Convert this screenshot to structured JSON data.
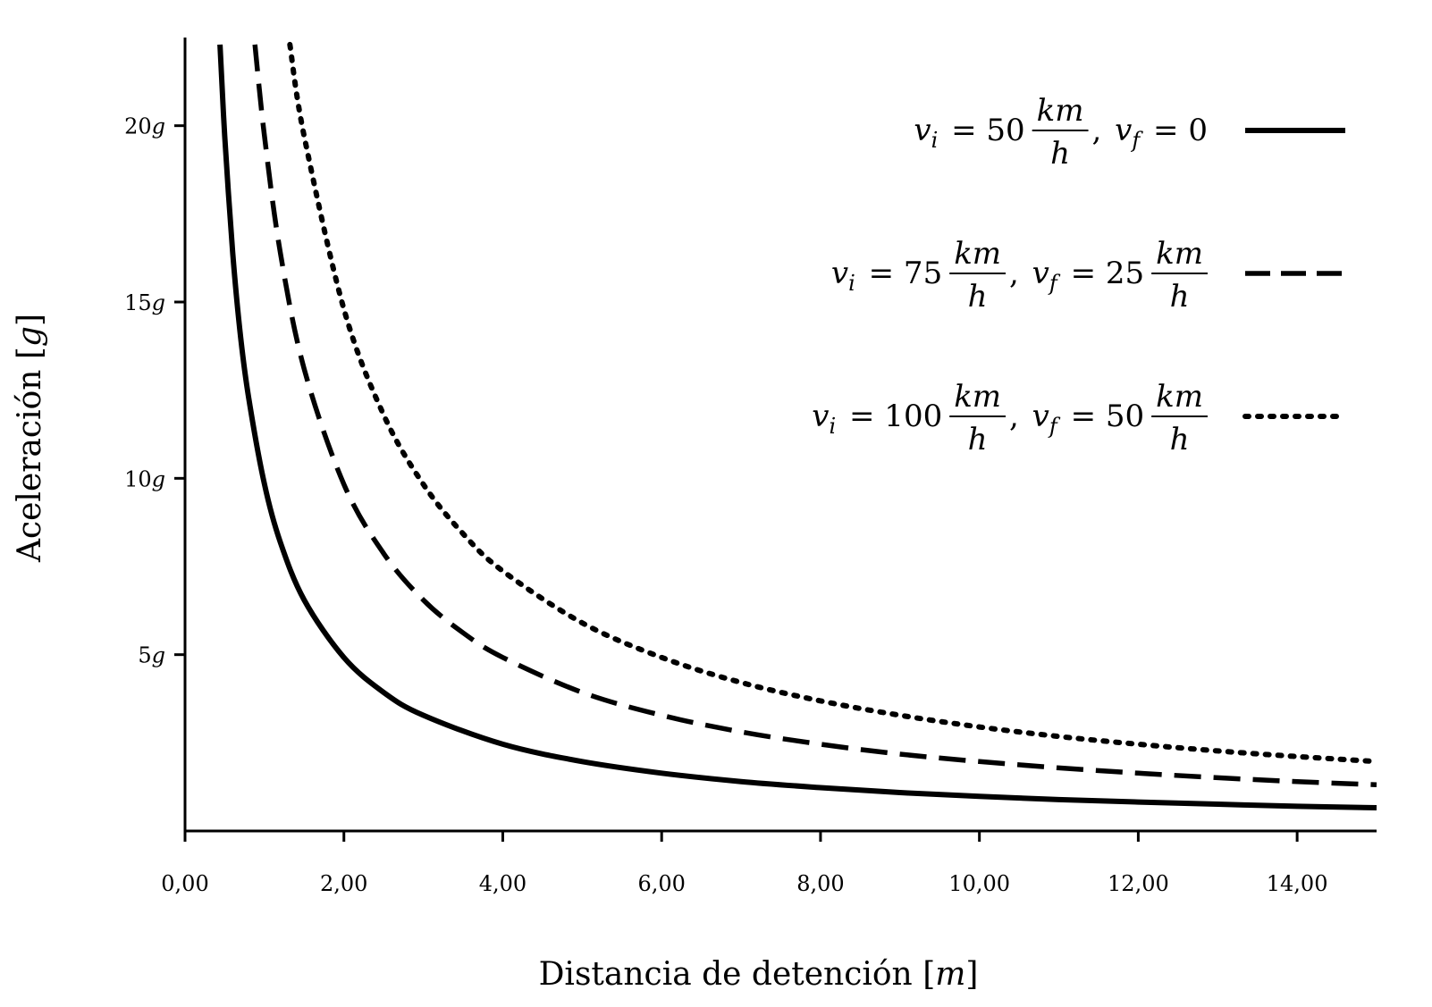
{
  "chart_data": {
    "type": "line",
    "xlabel": "Distancia de detención [m]",
    "ylabel": "Aceleración [g]",
    "xlim": [
      0,
      15
    ],
    "ylim": [
      0,
      22.5
    ],
    "grid": false,
    "legend_position": "top-right",
    "x_ticks": [
      {
        "value": 0,
        "label": "0,00"
      },
      {
        "value": 2,
        "label": "2,00"
      },
      {
        "value": 4,
        "label": "4,00"
      },
      {
        "value": 6,
        "label": "6,00"
      },
      {
        "value": 8,
        "label": "8,00"
      },
      {
        "value": 10,
        "label": "10,00"
      },
      {
        "value": 12,
        "label": "12,00"
      },
      {
        "value": 14,
        "label": "14,00"
      }
    ],
    "y_ticks": [
      {
        "value": 5,
        "label": "5g"
      },
      {
        "value": 10,
        "label": "10g"
      },
      {
        "value": 15,
        "label": "15g"
      },
      {
        "value": 20,
        "label": "20g"
      }
    ],
    "series": [
      {
        "name": "v_i = 50 km/h, v_f = 0",
        "style": "solid",
        "x": [
          0.44,
          0.5,
          0.6,
          0.7,
          0.8,
          1.0,
          1.2,
          1.5,
          2.0,
          2.5,
          3.0,
          4.0,
          5.0,
          6.0,
          7.0,
          8.0,
          9.0,
          10.0,
          11.0,
          12.0,
          13.0,
          14.0,
          15.0
        ],
        "y": [
          22.3,
          19.7,
          16.4,
          14.0,
          12.3,
          9.83,
          8.19,
          6.55,
          4.92,
          3.93,
          3.28,
          2.46,
          1.97,
          1.64,
          1.4,
          1.23,
          1.09,
          0.98,
          0.89,
          0.82,
          0.76,
          0.7,
          0.66
        ]
      },
      {
        "name": "v_i = 75 km/h, v_f = 25 km/h",
        "style": "dashed",
        "x": [
          0.88,
          1.0,
          1.2,
          1.5,
          2.0,
          2.5,
          3.0,
          3.5,
          4.0,
          5.0,
          6.0,
          7.0,
          8.0,
          9.0,
          10.0,
          11.0,
          12.0,
          13.0,
          14.0,
          15.0
        ],
        "y": [
          22.3,
          19.7,
          16.4,
          13.1,
          9.83,
          7.87,
          6.55,
          5.62,
          4.92,
          3.93,
          3.28,
          2.81,
          2.46,
          2.18,
          1.97,
          1.79,
          1.64,
          1.51,
          1.4,
          1.31
        ]
      },
      {
        "name": "v_i = 100 km/h, v_f = 50 km/h",
        "style": "dotted",
        "x": [
          1.32,
          1.5,
          2.0,
          2.5,
          3.0,
          3.5,
          4.0,
          5.0,
          6.0,
          7.0,
          8.0,
          9.0,
          10.0,
          11.0,
          12.0,
          13.0,
          14.0,
          15.0
        ],
        "y": [
          22.3,
          19.7,
          14.8,
          11.8,
          9.83,
          8.43,
          7.37,
          5.9,
          4.92,
          4.21,
          3.69,
          3.28,
          2.95,
          2.68,
          2.46,
          2.27,
          2.11,
          1.97
        ]
      }
    ],
    "legend": [
      {
        "vi_label": "v",
        "vi_sub": "i",
        "vi_value": "50",
        "vi_unit_num": "km",
        "vi_unit_den": "h",
        "vf_label": "v",
        "vf_sub": "f",
        "vf_value": "0",
        "vf_unit_num": "",
        "vf_unit_den": ""
      },
      {
        "vi_label": "v",
        "vi_sub": "i",
        "vi_value": "75",
        "vi_unit_num": "km",
        "vi_unit_den": "h",
        "vf_label": "v",
        "vf_sub": "f",
        "vf_value": "25",
        "vf_unit_num": "km",
        "vf_unit_den": "h"
      },
      {
        "vi_label": "v",
        "vi_sub": "i",
        "vi_value": "100",
        "vi_unit_num": "km",
        "vi_unit_den": "h",
        "vf_label": "v",
        "vf_sub": "f",
        "vf_value": "50",
        "vf_unit_num": "km",
        "vf_unit_den": "h"
      }
    ]
  }
}
